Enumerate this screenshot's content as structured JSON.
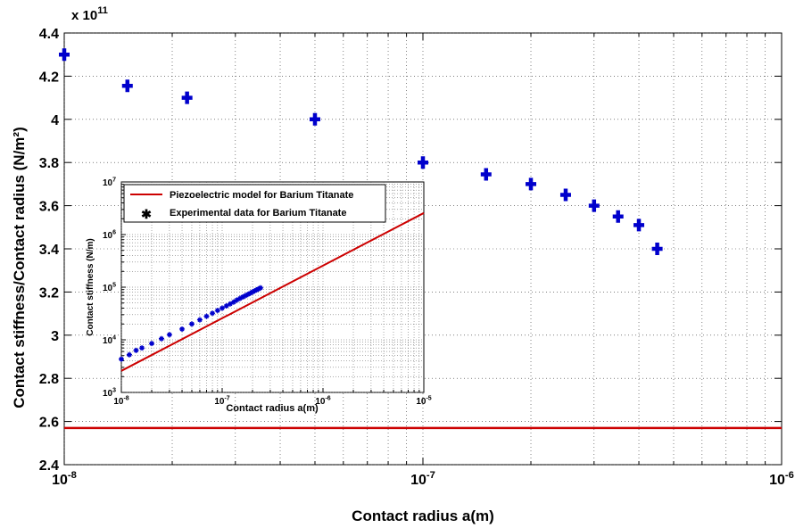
{
  "chart_data": [
    {
      "type": "scatter",
      "xlabel": "Contact radius a(m)",
      "ylabel": "Contact stiffness/Contact radius (N/m²)",
      "yexponent_label": "x 10",
      "yexponent_power": "11",
      "xscale": "log",
      "xlim": [
        1e-08,
        1e-06
      ],
      "ylim": [
        240000000000.0,
        440000000000.0
      ],
      "grid": true,
      "x_tick_labels": [
        {
          "value": 1e-08,
          "base": "10",
          "exp": "-8"
        },
        {
          "value": 1e-07,
          "base": "10",
          "exp": "-7"
        },
        {
          "value": 1e-06,
          "base": "10",
          "exp": "-6"
        }
      ],
      "y_tick_labels": [
        {
          "value": 240000000000.0,
          "label": "2.4"
        },
        {
          "value": 260000000000.0,
          "label": "2.6"
        },
        {
          "value": 280000000000.0,
          "label": "2.8"
        },
        {
          "value": 300000000000.0,
          "label": "3"
        },
        {
          "value": 320000000000.0,
          "label": "3.2"
        },
        {
          "value": 340000000000.0,
          "label": "3.4"
        },
        {
          "value": 360000000000.0,
          "label": "3.6"
        },
        {
          "value": 380000000000.0,
          "label": "3.8"
        },
        {
          "value": 400000000000.0,
          "label": "4"
        },
        {
          "value": 420000000000.0,
          "label": "4.2"
        },
        {
          "value": 440000000000.0,
          "label": "4.4"
        }
      ],
      "series": [
        {
          "marker": "+",
          "color": "#0000cc",
          "x": [
            1e-08,
            1.5e-08,
            2.2e-08,
            5e-08,
            1e-07,
            1.5e-07,
            2e-07,
            2.5e-07,
            3e-07,
            3.5e-07,
            4e-07,
            4.5e-07
          ],
          "y": [
            430000000000.0,
            415500000000.0,
            410000000000.0,
            400000000000.0,
            380000000000.0,
            374500000000.0,
            370000000000.0,
            365000000000.0,
            360000000000.0,
            355000000000.0,
            351000000000.0,
            340000000000.0
          ]
        },
        {
          "line": true,
          "color": "#cc0000",
          "x": [
            1e-08,
            1e-06
          ],
          "y": [
            257000000000.0,
            257000000000.0
          ]
        }
      ]
    },
    {
      "type": "line",
      "xlabel": "Contact radius a(m)",
      "ylabel": "Contact stiffness (N/m)",
      "xscale": "log",
      "yscale": "log",
      "xlim": [
        1e-08,
        1e-05
      ],
      "ylim": [
        1000.0,
        10000000.0
      ],
      "grid": true,
      "legend_position": "top",
      "x_tick_labels": [
        {
          "value": 1e-08,
          "base": "10",
          "exp": "-8"
        },
        {
          "value": 1e-07,
          "base": "10",
          "exp": "-7"
        },
        {
          "value": 1e-06,
          "base": "10",
          "exp": "-6"
        },
        {
          "value": 1e-05,
          "base": "10",
          "exp": "-5"
        }
      ],
      "y_tick_labels": [
        {
          "value": 1000.0,
          "base": "10",
          "exp": "3"
        },
        {
          "value": 10000.0,
          "base": "10",
          "exp": "4"
        },
        {
          "value": 100000.0,
          "base": "10",
          "exp": "5"
        },
        {
          "value": 1000000.0,
          "base": "10",
          "exp": "6"
        },
        {
          "value": 10000000.0,
          "base": "10",
          "exp": "7"
        }
      ],
      "series": [
        {
          "name": "Piezoelectric model for Barium Titanate",
          "color": "#cc0000",
          "x": [
            1e-08,
            1e-05
          ],
          "y": [
            2570,
            2570000
          ]
        },
        {
          "name": "Experimental data for Barium Titanate",
          "marker": "*",
          "color": "#0000cc",
          "x": [
            1e-08,
            1.2e-08,
            1.4e-08,
            1.6e-08,
            2e-08,
            2.5e-08,
            3e-08,
            4e-08,
            5e-08,
            6e-08,
            7e-08,
            8e-08,
            9e-08,
            1e-07,
            1.1e-07,
            1.2e-07,
            1.3e-07,
            1.4e-07,
            1.5e-07,
            1.6e-07,
            1.7e-07,
            1.8e-07,
            1.9e-07,
            2e-07,
            2.1e-07,
            2.2e-07,
            2.3e-07,
            2.4e-07
          ],
          "y": [
            4300,
            5200,
            6300,
            7000,
            8500,
            10500,
            12500,
            16000,
            20000,
            24000,
            28000,
            32000,
            36000,
            40000,
            44000,
            48000,
            52000,
            57000,
            61000,
            65000,
            69000,
            73000,
            77000,
            81000,
            85000,
            89000,
            93000,
            97000
          ]
        }
      ]
    }
  ]
}
